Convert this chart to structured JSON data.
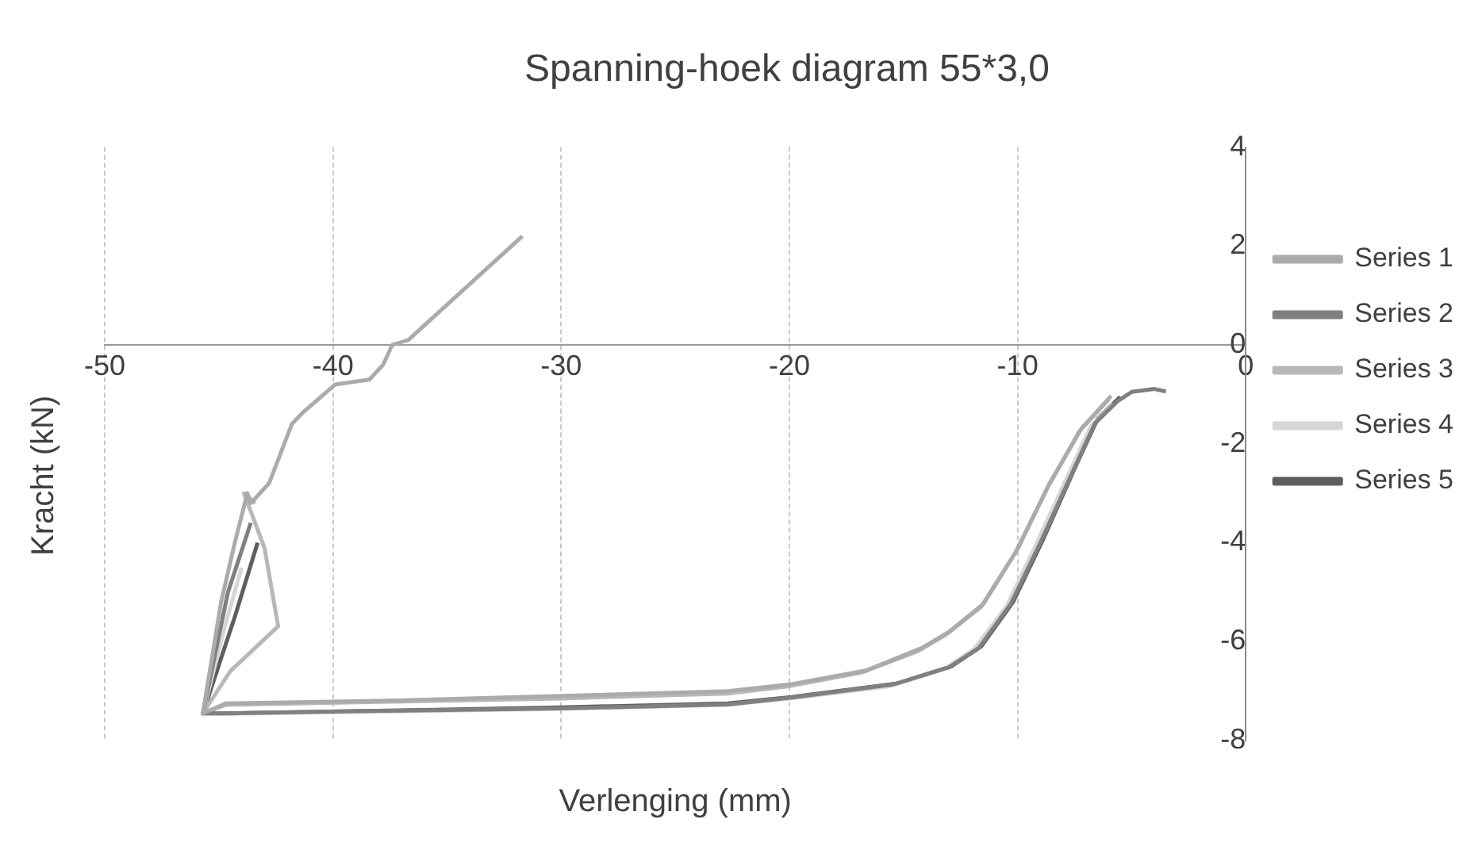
{
  "chart_data": {
    "type": "line",
    "title": "Spanning-hoek diagram 55*3,0",
    "xlabel": "Verlenging (mm)",
    "ylabel": "Kracht (kN)",
    "xlim": [
      -50,
      0
    ],
    "ylim": [
      -8,
      4
    ],
    "xticks": [
      -50,
      -40,
      -30,
      -20,
      -10,
      0
    ],
    "yticks": [
      -8,
      -6,
      -4,
      -2,
      0,
      2,
      4
    ],
    "grid": "x",
    "legend": "right",
    "marker": "none",
    "line_style": "solid",
    "series": [
      {
        "name": "Series 1",
        "color": "#ababab",
        "x": [
          -5.9,
          -7.2,
          -8.6,
          -10.0,
          -11.5,
          -13.0,
          -14.2,
          -16.6,
          -19.9,
          -22.7,
          -30,
          -38,
          -44.7,
          -45.7,
          -44.9,
          -44.3,
          -43.75,
          -43.6,
          -42.8,
          -41.8,
          -41.3,
          -39.9,
          -38.4,
          -37.8,
          -37.4,
          -36.7,
          -31.7
        ],
        "values": [
          -1.03,
          -1.69,
          -2.8,
          -4.13,
          -5.24,
          -5.8,
          -6.13,
          -6.58,
          -6.86,
          -7.0,
          -7.1,
          -7.2,
          -7.25,
          -7.45,
          -5.2,
          -4.0,
          -3.0,
          -3.2,
          -2.8,
          -1.6,
          -1.36,
          -0.8,
          -0.7,
          -0.4,
          0.0,
          0.1,
          2.2
        ]
      },
      {
        "name": "Series 2",
        "color": "#808080",
        "x": [
          -3.5,
          -4.0,
          -5.0,
          -5.6,
          -6.6,
          -7.6,
          -9.0,
          -10.3,
          -11.7,
          -13.0,
          -15.4,
          -19.9,
          -22.7,
          -30,
          -38,
          -44.7,
          -45.7,
          -44.6,
          -43.6
        ],
        "values": [
          -0.94,
          -0.89,
          -0.95,
          -1.13,
          -1.58,
          -2.58,
          -4.0,
          -5.24,
          -6.13,
          -6.52,
          -6.86,
          -7.13,
          -7.27,
          -7.35,
          -7.4,
          -7.45,
          -7.45,
          -5.0,
          -3.6
        ]
      },
      {
        "name": "Series 3",
        "color": "#b8b8b8",
        "x": [
          -6.0,
          -7.3,
          -8.7,
          -10.1,
          -11.6,
          -13.1,
          -14.4,
          -16.8,
          -20.0,
          -22.7,
          -30,
          -38,
          -44.7,
          -45.7,
          -44.5,
          -42.4,
          -43.0,
          -43.9,
          -43.4
        ],
        "values": [
          -1.1,
          -1.75,
          -2.9,
          -4.2,
          -5.3,
          -5.85,
          -6.2,
          -6.62,
          -6.9,
          -7.05,
          -7.15,
          -7.22,
          -7.28,
          -7.45,
          -6.6,
          -5.69,
          -4.1,
          -3.0,
          -3.2
        ]
      },
      {
        "name": "Series 4",
        "color": "#d6d6d6",
        "x": [
          -5.8,
          -6.8,
          -7.8,
          -9.2,
          -10.5,
          -11.9,
          -13.2,
          -15.6,
          -20.0,
          -22.7,
          -30,
          -38,
          -44.7,
          -45.7,
          -44.8,
          -44.0
        ],
        "values": [
          -1.2,
          -1.65,
          -2.65,
          -4.05,
          -5.3,
          -6.15,
          -6.55,
          -6.9,
          -7.15,
          -7.28,
          -7.36,
          -7.42,
          -7.46,
          -7.45,
          -5.8,
          -4.5
        ]
      },
      {
        "name": "Series 5",
        "color": "#5e5e5e",
        "x": [
          -5.5,
          -6.5,
          -7.5,
          -8.9,
          -10.2,
          -11.6,
          -12.9,
          -15.3,
          -19.9,
          -22.7,
          -30,
          -38,
          -44.7,
          -45.7,
          -44.3,
          -43.3
        ],
        "values": [
          -1.05,
          -1.5,
          -2.5,
          -3.95,
          -5.2,
          -6.1,
          -6.5,
          -6.85,
          -7.12,
          -7.25,
          -7.33,
          -7.4,
          -7.45,
          -7.45,
          -5.5,
          -4.0
        ]
      }
    ]
  }
}
